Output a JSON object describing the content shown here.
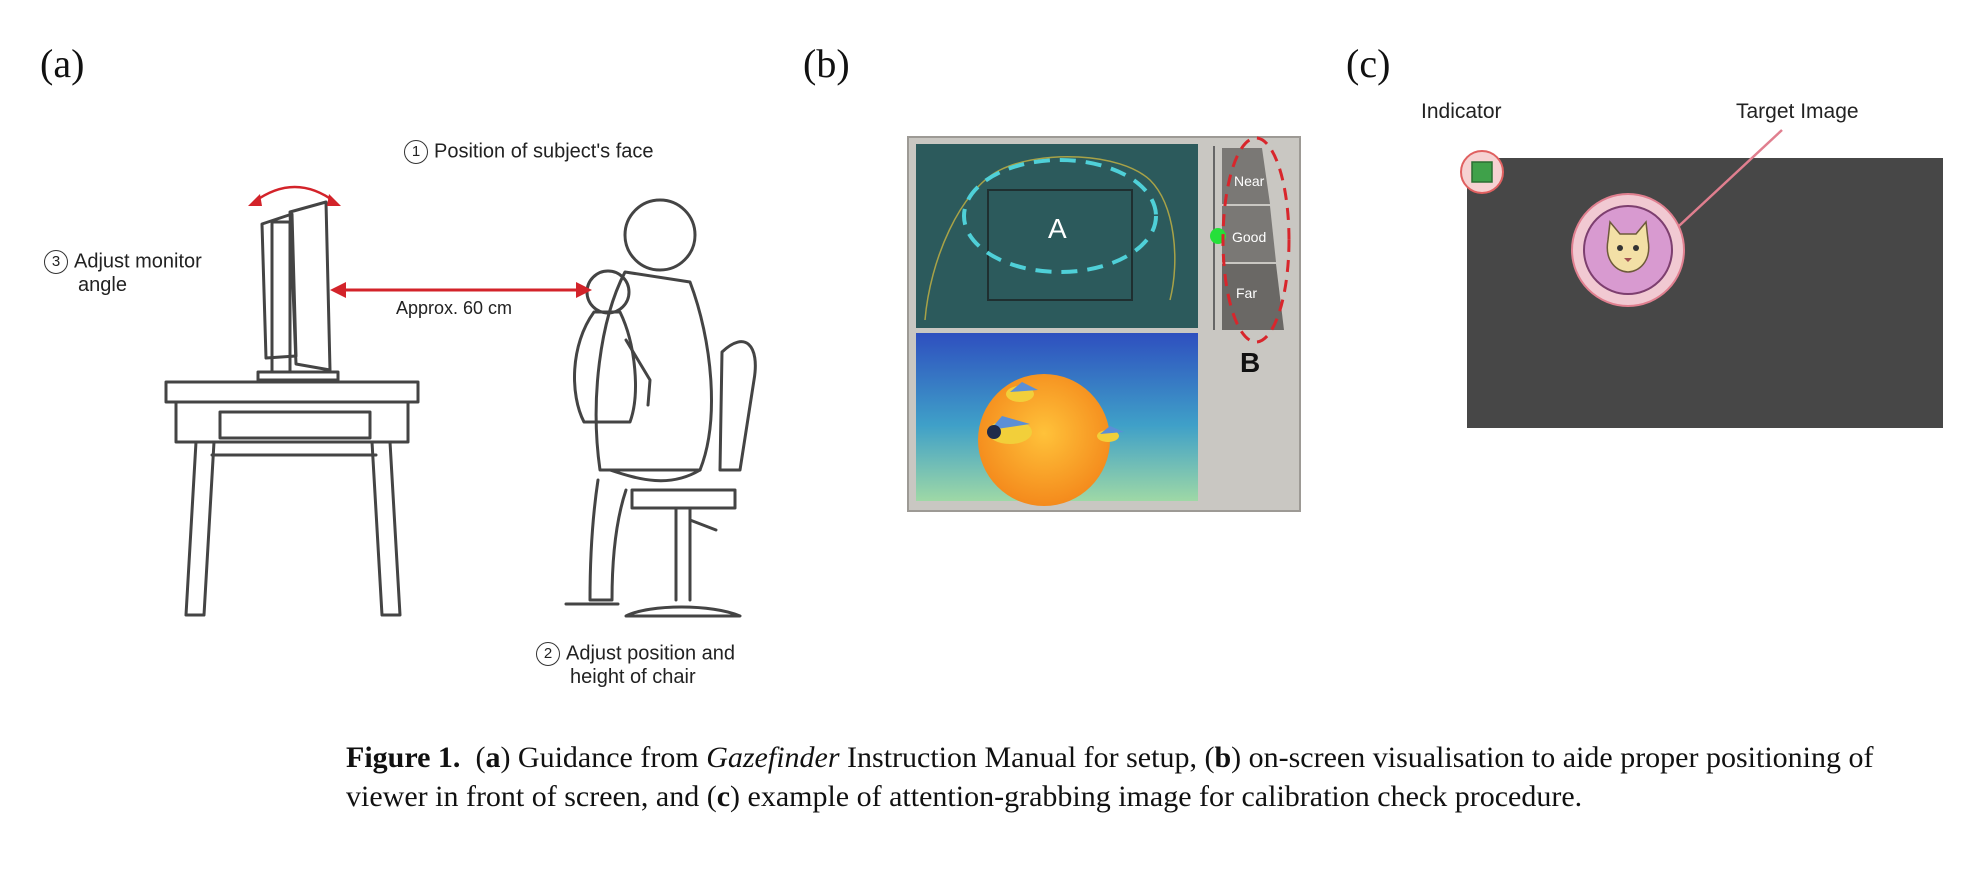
{
  "panels": {
    "a": {
      "label": "(a)",
      "step1": {
        "num": "1",
        "text": "Position of subject's face"
      },
      "step2": {
        "num": "2",
        "line1": "Adjust position and",
        "line2": "height of chair"
      },
      "step3": {
        "num": "3",
        "line1": "Adjust monitor",
        "line2": "angle"
      },
      "distance": "Approx. 60 cm"
    },
    "b": {
      "label": "(b)",
      "area_a": "A",
      "area_b": "B",
      "scale": [
        "Near",
        "Good",
        "Far"
      ]
    },
    "c": {
      "label": "(c)",
      "indicator": "Indicator",
      "target": "Target Image"
    }
  },
  "caption": {
    "figure": "Figure 1.",
    "a_letter": "a",
    "a_text_before": ") Guidance from ",
    "a_italic": "Gazefinder",
    "a_text_after": " Instruction Manual for setup, (",
    "b_letter": "b",
    "b_text": ") on-screen visualisation to aide proper positioning of viewer in front of screen, and (",
    "c_letter": "c",
    "c_text": ") example of attention-grabbing image for calibration check procedure."
  },
  "colors": {
    "arrow_red": "#d3232a",
    "screen_teal": "#2c5a5c",
    "dash_cyan": "#4fd0d8",
    "dash_red": "#d8262c",
    "indicator_green": "#3fa14a",
    "target_pink": "#d89ad0",
    "dark_screen": "#474747"
  }
}
